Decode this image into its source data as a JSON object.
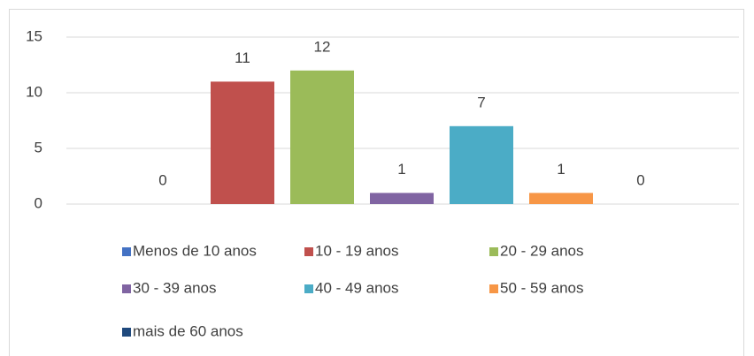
{
  "chart_data": {
    "type": "bar",
    "series": [
      {
        "name": "Menos de 10 anos",
        "color": "#4472c4",
        "values": [
          0
        ]
      },
      {
        "name": "10 - 19 anos",
        "color": "#c0504d",
        "values": [
          11
        ]
      },
      {
        "name": "20 - 29 anos",
        "color": "#9bbb59",
        "values": [
          12
        ]
      },
      {
        "name": "30 - 39 anos",
        "color": "#8064a2",
        "values": [
          1
        ]
      },
      {
        "name": "40 - 49 anos",
        "color": "#4bacc6",
        "values": [
          7
        ]
      },
      {
        "name": "50 - 59 anos",
        "color": "#f79646",
        "values": [
          1
        ]
      },
      {
        "name": "mais de 60 anos",
        "color": "#1f497d",
        "values": [
          0
        ]
      }
    ],
    "ylim": [
      0,
      15
    ],
    "yticks": [
      0,
      5,
      10,
      15
    ],
    "grid": true,
    "legend": "bottom"
  }
}
